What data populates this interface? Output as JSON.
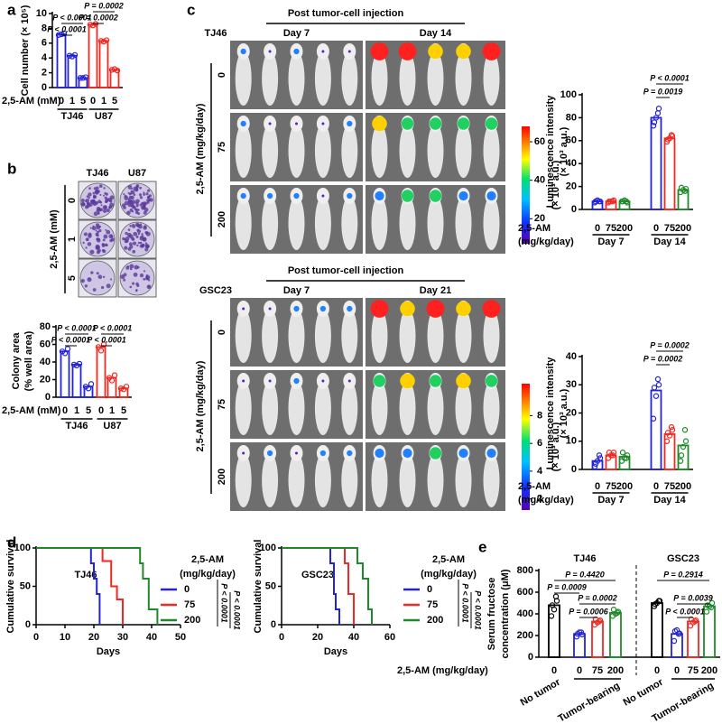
{
  "panel_letters": [
    "a",
    "b",
    "c",
    "d",
    "e"
  ],
  "colony_images": {
    "columns": [
      "TJ46",
      "U87"
    ],
    "rows": [
      "0",
      "1",
      "5"
    ],
    "ylabel": "2,5-AM (mM)"
  },
  "imaging": [
    {
      "title": "Post tumor-cell injection",
      "cell_line": "TJ46",
      "days": [
        "Day 7",
        "Day 14"
      ],
      "rows": [
        "0",
        "75",
        "200"
      ],
      "ylabel": "2,5-AM (mg/kg/day)",
      "colorbar": {
        "label": "(× 10³ a.u.)",
        "lim": [
          7,
          68
        ],
        "ticks": [
          20,
          40,
          60
        ]
      }
    },
    {
      "title": "Post tumor-cell injection",
      "cell_line": "GSC23",
      "days": [
        "Day 7",
        "Day 21"
      ],
      "rows": [
        "0",
        "75",
        "200"
      ],
      "ylabel": "2,5-AM (mg/kg/day)",
      "colorbar": {
        "label": "(× 10³ a.u.)",
        "lim": [
          1.2,
          10.3
        ],
        "ticks": [
          2,
          4,
          6,
          8
        ]
      }
    }
  ],
  "chart_data": [
    {
      "type": "bar",
      "ylabel": [
        "Cell number (× 10⁵)"
      ],
      "xlabel": [
        "2,5-AM (mM)"
      ],
      "categories": [
        "0",
        "1",
        "5",
        "0",
        "1",
        "5"
      ],
      "groups": [
        "TJ46",
        "U87"
      ],
      "colors": [
        "#2323d8",
        "#2323d8",
        "#2323d8",
        "#ee2a24",
        "#ee2a24",
        "#ee2a24"
      ],
      "values": [
        7.2,
        4.3,
        1.3,
        8.5,
        6.3,
        2.4
      ],
      "points": [
        [
          7.1,
          7.3,
          7.2
        ],
        [
          4.3,
          4.4,
          4.2
        ],
        [
          1.3,
          1.4,
          1.3
        ],
        [
          8.5,
          8.6,
          8.4
        ],
        [
          6.3,
          6.4,
          6.2
        ],
        [
          2.4,
          2.3,
          2.5
        ]
      ],
      "ylim": [
        0,
        10
      ],
      "yticks": [
        0,
        2,
        4,
        6,
        8,
        10
      ],
      "annotations": [
        "P < 0.0001",
        "P < 0.0001",
        "P = 0.0002",
        "P = 0.0002"
      ]
    },
    {
      "type": "bar",
      "ylabel": [
        "Colony area",
        "(% well area)"
      ],
      "xlabel": [
        "2,5-AM (mM)"
      ],
      "categories": [
        "0",
        "1",
        "5",
        "0",
        "1",
        "5"
      ],
      "groups": [
        "TJ46",
        "U87"
      ],
      "colors": [
        "#2323d8",
        "#2323d8",
        "#2323d8",
        "#ee2a24",
        "#ee2a24",
        "#ee2a24"
      ],
      "values": [
        52,
        37,
        12,
        57,
        22,
        10
      ],
      "points": [
        [
          52,
          55,
          50
        ],
        [
          37,
          38,
          36
        ],
        [
          12,
          15,
          10
        ],
        [
          57,
          60,
          53
        ],
        [
          22,
          25,
          19
        ],
        [
          10,
          12,
          9
        ]
      ],
      "ylim": [
        0,
        80
      ],
      "yticks": [
        0,
        20,
        40,
        60,
        80
      ],
      "annotations": [
        "P < 0.0001",
        "P < 0.0001",
        "P < 0.0001",
        "P < 0.0001"
      ]
    },
    {
      "type": "bar",
      "ylabel": [
        "Luminescence intensity",
        "(× 10³ a.u.)"
      ],
      "xlabel": [
        "2,5-AM",
        "(mg/kg/day)"
      ],
      "categories": [
        "0",
        "75",
        "200",
        "0",
        "75",
        "200"
      ],
      "groups": [
        "Day 7",
        "Day 14"
      ],
      "colors": [
        "#2323d8",
        "#ee2a24",
        "#1f8a2a",
        "#2323d8",
        "#ee2a24",
        "#1f8a2a"
      ],
      "values": [
        7,
        7,
        7,
        80,
        62,
        17
      ],
      "points": [
        [
          6,
          7,
          8,
          7,
          7
        ],
        [
          6,
          8,
          7,
          7,
          7
        ],
        [
          7,
          6,
          8,
          7,
          7
        ],
        [
          73,
          88,
          80,
          76,
          84
        ],
        [
          59,
          64,
          62,
          61,
          65
        ],
        [
          15,
          18,
          17,
          19,
          16
        ]
      ],
      "ylim": [
        0,
        100
      ],
      "yticks": [
        0,
        20,
        40,
        60,
        80,
        100
      ],
      "annotations": [
        "P < 0.0001",
        "P = 0.0019"
      ]
    },
    {
      "type": "bar",
      "ylabel": [
        "Luminescence intensity",
        "(× 10³ a.u.)"
      ],
      "xlabel": [
        "2,5-AM",
        "(mg/kg/day)"
      ],
      "categories": [
        "0",
        "75",
        "200",
        "0",
        "75",
        "200"
      ],
      "groups": [
        "Day 7",
        "Day 14"
      ],
      "colors": [
        "#2323d8",
        "#ee2a24",
        "#1f8a2a",
        "#2323d8",
        "#ee2a24",
        "#1f8a2a"
      ],
      "values": [
        3,
        5,
        4.5,
        28,
        12.5,
        8.5
      ],
      "points": [
        [
          1,
          4,
          3,
          2,
          5
        ],
        [
          4,
          6,
          5,
          6,
          5
        ],
        [
          3,
          5,
          4,
          6,
          4
        ],
        [
          18,
          30,
          26,
          29,
          32
        ],
        [
          10,
          14,
          12,
          13,
          15
        ],
        [
          3,
          10,
          8,
          5,
          14
        ]
      ],
      "ylim": [
        0,
        40
      ],
      "yticks": [
        0,
        10,
        20,
        30,
        40
      ],
      "annotations": [
        "P = 0.0002",
        "P = 0.0002"
      ]
    },
    {
      "type": "line",
      "title": "TJ46",
      "xlabel": "Days",
      "ylabel": "Cumulative survival",
      "legend_title": [
        "2,5-AM",
        "(mg/kg/day)"
      ],
      "annotations": [
        "P < 0.0001",
        "P < 0.0001"
      ],
      "series": [
        {
          "name": "0",
          "color": "#2323d8",
          "x": [
            0,
            19,
            20,
            21,
            22
          ],
          "values": [
            100,
            80,
            60,
            40,
            0
          ]
        },
        {
          "name": "75",
          "color": "#ee2a24",
          "x": [
            0,
            23,
            26,
            28,
            30
          ],
          "values": [
            100,
            83,
            50,
            33,
            0
          ]
        },
        {
          "name": "200",
          "color": "#1f8a2a",
          "x": [
            0,
            36,
            37,
            39,
            42
          ],
          "values": [
            100,
            80,
            60,
            20,
            0
          ]
        }
      ],
      "xlim": [
        0,
        50
      ],
      "xticks": [
        0,
        10,
        20,
        30,
        40,
        50
      ],
      "ylim": [
        0,
        100
      ],
      "yticks": [
        0,
        50,
        100
      ]
    },
    {
      "type": "line",
      "title": "GSC23",
      "xlabel": "Days",
      "ylabel": "Cumulative survival",
      "legend_title": [
        "2,5-AM",
        "(mg/kg/day)"
      ],
      "annotations": [
        "P < 0.0001",
        "P < 0.0001"
      ],
      "series": [
        {
          "name": "0",
          "color": "#2323d8",
          "x": [
            0,
            27,
            29,
            30,
            32
          ],
          "values": [
            100,
            80,
            40,
            20,
            0
          ]
        },
        {
          "name": "75",
          "color": "#ee2a24",
          "x": [
            0,
            35,
            37,
            40
          ],
          "values": [
            100,
            80,
            40,
            0
          ]
        },
        {
          "name": "200",
          "color": "#1f8a2a",
          "x": [
            0,
            42,
            45,
            48,
            50
          ],
          "values": [
            100,
            80,
            60,
            20,
            0
          ]
        }
      ],
      "xlim": [
        0,
        60
      ],
      "xticks": [
        0,
        20,
        40,
        60
      ],
      "ylim": [
        0,
        100
      ],
      "yticks": [
        0,
        50,
        100
      ]
    },
    {
      "type": "bar",
      "ylabel": [
        "Serum fructose",
        "concentration (μM)"
      ],
      "xlabel": [
        "2,5-AM (mg/kg/day)"
      ],
      "categories": [
        "0",
        "0",
        "75",
        "200",
        "0",
        "0",
        "75",
        "200"
      ],
      "groups": [
        "TJ46",
        "GSC23"
      ],
      "group_labels": [
        "No tumor",
        "Tumor-bearing",
        "No tumor",
        "Tumor-bearing"
      ],
      "colors": [
        "#000000",
        "#2323d8",
        "#ee2a24",
        "#1f8a2a",
        "#000000",
        "#2323d8",
        "#ee2a24",
        "#1f8a2a"
      ],
      "values": [
        480,
        215,
        330,
        410,
        500,
        215,
        330,
        470
      ],
      "points": [
        [
          380,
          520,
          440,
          480,
          560
        ],
        [
          190,
          210,
          230,
          215,
          230
        ],
        [
          300,
          340,
          320,
          350,
          330
        ],
        [
          380,
          420,
          400,
          440,
          410
        ],
        [
          470,
          520,
          500,
          490,
          520
        ],
        [
          150,
          220,
          250,
          240,
          215
        ],
        [
          290,
          340,
          320,
          350,
          330
        ],
        [
          420,
          500,
          470,
          480,
          460
        ]
      ],
      "ylim": [
        0,
        800
      ],
      "yticks": [
        0,
        200,
        400,
        600,
        800
      ],
      "annotations": [
        "P = 0.4420",
        "P = 0.0009",
        "P = 0.0002",
        "P = 0.0006",
        "P = 0.2914",
        "P = 0.0039",
        "P < 0.0001"
      ]
    }
  ]
}
